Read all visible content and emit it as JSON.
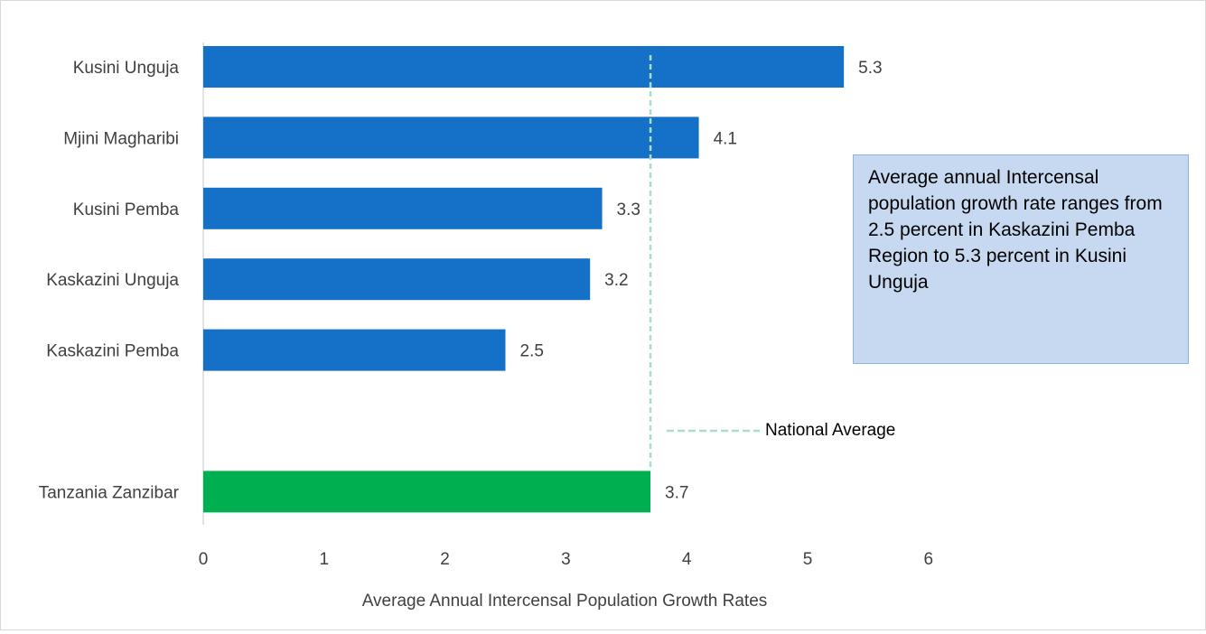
{
  "chart_data": {
    "type": "bar",
    "orientation": "horizontal",
    "categories": [
      "Kusini Unguja",
      "Mjini Magharibi",
      "Kusini Pemba",
      "Kaskazini Unguja",
      "Kaskazini Pemba",
      "",
      "Tanzania Zanzibar"
    ],
    "values": [
      5.3,
      4.1,
      3.3,
      3.2,
      2.5,
      null,
      3.7
    ],
    "data_labels": [
      "5.3",
      "4.1",
      "3.3",
      "3.2",
      "2.5",
      "",
      "3.7"
    ],
    "bar_colors": [
      "#1570c8",
      "#1570c8",
      "#1570c8",
      "#1570c8",
      "#1570c8",
      "#1570c8",
      "#00b050"
    ],
    "xlabel": "Average Annual Intercensal Population Growth Rates",
    "ylabel": "",
    "xlim": [
      0,
      6
    ],
    "x_ticks": [
      "0",
      "1",
      "2",
      "3",
      "4",
      "5",
      "6"
    ],
    "grid": false,
    "reference_line": {
      "value": 3.7,
      "label": "National Average",
      "color": "#a9dfc4",
      "style": "dashed"
    },
    "annotation": "Average annual Intercensal population growth rate ranges from 2.5 percent in Kaskazini Pemba Region to 5.3 percent in Kusini Unguja"
  }
}
